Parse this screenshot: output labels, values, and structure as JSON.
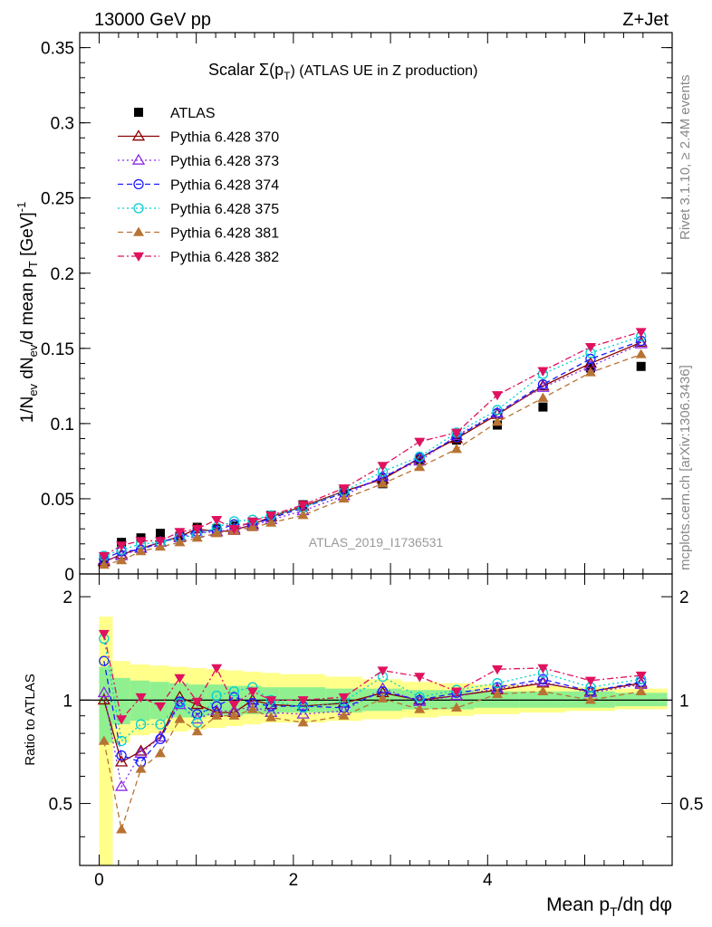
{
  "header": {
    "left_label": "13000 GeV pp",
    "right_label": "Z+Jet",
    "title_prefix": "Scalar ",
    "title_symbol": "Σ(p",
    "title_sub": "T",
    "title_suffix": ") (ATLAS UE in Z production)"
  },
  "side_text": {
    "rivet": "Rivet 3.1.10, ≥ 2.4M events",
    "mcplots": "mcplots.cern.ch [arXiv:1306.3436]"
  },
  "watermark": "ATLAS_2019_I1736531",
  "axes": {
    "ylabel_main": "1/N_ev dN_ev/d mean p_T [GeV]^-1",
    "ylabel_ratio": "Ratio to ATLAS",
    "xlabel": "Mean p_T/dη dφ"
  },
  "chart_data": [
    {
      "type": "scatter",
      "panel": "main",
      "xlim": [
        -0.2,
        5.9
      ],
      "ylim": [
        0,
        0.36
      ],
      "x_ticks": [
        0,
        2,
        4
      ],
      "y_ticks": [
        "0",
        "0.05",
        "0.1",
        "0.15",
        "0.2",
        "0.25",
        "0.3",
        "0.35"
      ],
      "legend_placement": "top-left",
      "x": [
        0.05,
        0.23,
        0.43,
        0.63,
        0.83,
        1.01,
        1.21,
        1.39,
        1.58,
        1.77,
        2.1,
        2.52,
        2.92,
        3.3,
        3.68,
        4.1,
        4.57,
        5.06,
        5.58
      ],
      "series": [
        {
          "name": "ATLAS",
          "color": "#000000",
          "marker": "square",
          "line": "none",
          "values": [
            0.008,
            0.021,
            0.024,
            0.027,
            0.025,
            0.031,
            0.03,
            0.032,
            0.033,
            0.039,
            0.046,
            0.056,
            0.06,
            0.076,
            0.089,
            0.099,
            0.111,
            0.137,
            0.138
          ]
        },
        {
          "name": "Pythia 6.428 370",
          "color": "#8b0000",
          "marker": "triangle-open",
          "line": "solid",
          "values": [
            0.008,
            0.013,
            0.017,
            0.021,
            0.025,
            0.03,
            0.028,
            0.029,
            0.033,
            0.038,
            0.045,
            0.055,
            0.063,
            0.077,
            0.09,
            0.106,
            0.125,
            0.14,
            0.154
          ]
        },
        {
          "name": "Pythia 6.428 373",
          "color": "#8a2be2",
          "marker": "triangle-open",
          "line": "dotted",
          "values": [
            0.009,
            0.012,
            0.017,
            0.021,
            0.024,
            0.027,
            0.028,
            0.03,
            0.032,
            0.036,
            0.042,
            0.052,
            0.065,
            0.075,
            0.092,
            0.107,
            0.124,
            0.138,
            0.153
          ]
        },
        {
          "name": "Pythia 6.428 374",
          "color": "#1a1aff",
          "marker": "circle-open",
          "line": "dashed",
          "values": [
            0.01,
            0.015,
            0.016,
            0.021,
            0.025,
            0.028,
            0.029,
            0.033,
            0.033,
            0.037,
            0.044,
            0.054,
            0.064,
            0.077,
            0.091,
            0.107,
            0.126,
            0.143,
            0.155
          ]
        },
        {
          "name": "Pythia 6.428 375",
          "color": "#00ced1",
          "marker": "circle-open",
          "line": "dotted",
          "values": [
            0.012,
            0.016,
            0.02,
            0.021,
            0.024,
            0.026,
            0.031,
            0.035,
            0.036,
            0.039,
            0.044,
            0.055,
            0.068,
            0.078,
            0.094,
            0.109,
            0.133,
            0.147,
            0.158
          ]
        },
        {
          "name": "Pythia 6.428 381",
          "color": "#b87333",
          "marker": "triangle-filled",
          "line": "dashed",
          "values": [
            0.006,
            0.009,
            0.015,
            0.018,
            0.021,
            0.024,
            0.027,
            0.029,
            0.031,
            0.034,
            0.039,
            0.05,
            0.06,
            0.071,
            0.083,
            0.101,
            0.117,
            0.134,
            0.146
          ]
        },
        {
          "name": "Pythia 6.428 382",
          "color": "#e0115f",
          "marker": "triangle-down-filled",
          "line": "dashdot",
          "values": [
            0.012,
            0.019,
            0.022,
            0.022,
            0.028,
            0.03,
            0.036,
            0.03,
            0.035,
            0.039,
            0.046,
            0.057,
            0.072,
            0.088,
            0.094,
            0.119,
            0.135,
            0.151,
            0.161
          ]
        }
      ]
    },
    {
      "type": "line",
      "panel": "ratio",
      "xlim": [
        -0.2,
        5.9
      ],
      "ylim": [
        0.33,
        2.33
      ],
      "x_ticks": [
        0,
        2,
        4
      ],
      "y_ticks": [
        "0.5",
        "1",
        "2"
      ],
      "reference_line": 1,
      "uncertainty_bands": {
        "x_edges": [
          0.0,
          0.14,
          0.32,
          0.52,
          0.72,
          0.92,
          1.1,
          1.3,
          1.48,
          1.67,
          1.86,
          2.33,
          2.71,
          3.12,
          3.49,
          3.86,
          4.33,
          4.8,
          5.31,
          5.85
        ],
        "green_low": [
          0.75,
          0.85,
          0.87,
          0.88,
          0.89,
          0.89,
          0.9,
          0.9,
          0.91,
          0.91,
          0.92,
          0.92,
          0.93,
          0.94,
          0.94,
          0.95,
          0.95,
          0.95,
          0.96
        ],
        "green_high": [
          1.25,
          1.16,
          1.14,
          1.13,
          1.12,
          1.11,
          1.11,
          1.1,
          1.1,
          1.09,
          1.09,
          1.08,
          1.08,
          1.07,
          1.07,
          1.06,
          1.06,
          1.06,
          1.05
        ],
        "yellow_low": [
          0.3,
          0.75,
          0.79,
          0.8,
          0.81,
          0.82,
          0.83,
          0.84,
          0.85,
          0.86,
          0.86,
          0.87,
          0.88,
          0.89,
          0.9,
          0.91,
          0.92,
          0.93,
          0.94
        ],
        "yellow_high": [
          1.75,
          1.3,
          1.27,
          1.26,
          1.25,
          1.24,
          1.23,
          1.22,
          1.21,
          1.2,
          1.19,
          1.17,
          1.15,
          1.13,
          1.12,
          1.11,
          1.1,
          1.09,
          1.08
        ]
      },
      "x": [
        0.05,
        0.23,
        0.43,
        0.63,
        0.83,
        1.01,
        1.21,
        1.39,
        1.58,
        1.77,
        2.1,
        2.52,
        2.92,
        3.3,
        3.68,
        4.1,
        4.57,
        5.06,
        5.58
      ],
      "series": [
        {
          "name": "Pythia 6.428 370",
          "values": [
            1.0,
            0.66,
            0.71,
            0.78,
            1.02,
            0.97,
            0.92,
            0.92,
            1.0,
            0.97,
            0.96,
            0.98,
            1.05,
            1.0,
            1.03,
            1.07,
            1.12,
            1.06,
            1.12
          ]
        },
        {
          "name": "Pythia 6.428 373",
          "values": [
            1.05,
            0.56,
            0.7,
            0.78,
            0.97,
            0.88,
            0.93,
            0.93,
            0.96,
            0.92,
            0.91,
            0.93,
            1.08,
            0.99,
            1.03,
            1.08,
            1.13,
            1.05,
            1.11
          ]
        },
        {
          "name": "Pythia 6.428 374",
          "values": [
            1.3,
            0.69,
            0.66,
            0.77,
            0.99,
            0.91,
            0.96,
            1.02,
            0.98,
            0.96,
            0.96,
            0.95,
            1.06,
            1.0,
            1.05,
            1.09,
            1.15,
            1.06,
            1.13
          ]
        },
        {
          "name": "Pythia 6.428 375",
          "values": [
            1.51,
            0.76,
            0.85,
            0.85,
            0.98,
            0.86,
            1.03,
            1.06,
            1.09,
            1.0,
            0.95,
            0.99,
            1.17,
            1.02,
            1.07,
            1.12,
            1.2,
            1.09,
            1.15
          ]
        },
        {
          "name": "Pythia 6.428 381",
          "values": [
            0.76,
            0.42,
            0.63,
            0.7,
            0.88,
            0.81,
            0.9,
            0.9,
            0.94,
            0.89,
            0.86,
            0.9,
            1.01,
            0.94,
            0.95,
            1.04,
            1.06,
            1.0,
            1.06
          ]
        },
        {
          "name": "Pythia 6.428 382",
          "values": [
            1.56,
            0.88,
            1.02,
            0.96,
            1.16,
            0.99,
            1.24,
            0.97,
            1.06,
            1.0,
            1.0,
            1.02,
            1.22,
            1.17,
            1.06,
            1.23,
            1.24,
            1.14,
            1.18
          ]
        }
      ]
    }
  ]
}
